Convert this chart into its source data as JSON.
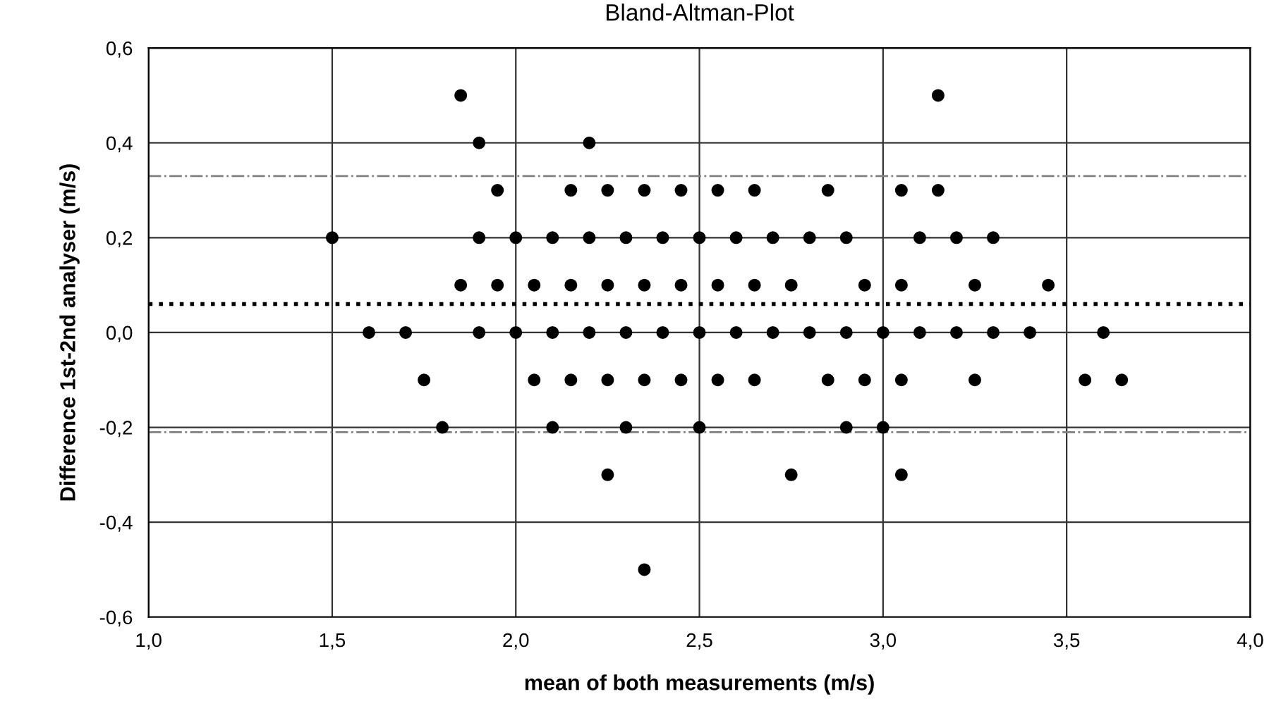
{
  "chart_data": {
    "type": "scatter",
    "title": "Bland-Altman-Plot",
    "xlabel": "mean of both measurements (m/s)",
    "ylabel": "Difference 1st-2nd analyser (m/s)",
    "xlim": [
      1.0,
      4.0
    ],
    "ylim": [
      -0.6,
      0.6
    ],
    "xticks": [
      {
        "value": 1.0,
        "label": "1,0"
      },
      {
        "value": 1.5,
        "label": "1,5"
      },
      {
        "value": 2.0,
        "label": "2,0"
      },
      {
        "value": 2.5,
        "label": "2,5"
      },
      {
        "value": 3.0,
        "label": "3,0"
      },
      {
        "value": 3.5,
        "label": "3,5"
      },
      {
        "value": 4.0,
        "label": "4,0"
      }
    ],
    "yticks": [
      {
        "value": -0.6,
        "label": "-0,6"
      },
      {
        "value": -0.4,
        "label": "-0,4"
      },
      {
        "value": -0.2,
        "label": "-0,2"
      },
      {
        "value": 0.0,
        "label": "0,0"
      },
      {
        "value": 0.2,
        "label": "0,2"
      },
      {
        "value": 0.4,
        "label": "0,4"
      },
      {
        "value": 0.6,
        "label": "0,6"
      }
    ],
    "grid": true,
    "marker": "circle",
    "series": [
      {
        "color": "#000000",
        "x": [
          1.85,
          3.15,
          1.9,
          2.2,
          1.95,
          2.15,
          2.25,
          2.35,
          2.45,
          2.55,
          2.65,
          2.85,
          3.05,
          3.15,
          1.5,
          1.9,
          2.0,
          2.1,
          2.2,
          2.3,
          2.4,
          2.5,
          2.6,
          2.7,
          2.8,
          2.9,
          3.1,
          3.2,
          3.3,
          1.85,
          1.95,
          2.05,
          2.15,
          2.25,
          2.35,
          2.45,
          2.55,
          2.65,
          2.75,
          2.95,
          3.05,
          3.25,
          3.45,
          1.6,
          1.7,
          1.9,
          2.0,
          2.1,
          2.2,
          2.3,
          2.4,
          2.5,
          2.6,
          2.7,
          2.8,
          2.9,
          3.0,
          3.1,
          3.2,
          3.3,
          3.4,
          3.6,
          1.75,
          2.05,
          2.15,
          2.25,
          2.35,
          2.45,
          2.55,
          2.65,
          2.85,
          2.95,
          3.05,
          3.25,
          3.55,
          3.65,
          1.8,
          2.1,
          2.3,
          2.5,
          2.9,
          3.0,
          2.25,
          2.75,
          3.05,
          2.35
        ],
        "values": [
          0.5,
          0.5,
          0.4,
          0.4,
          0.3,
          0.3,
          0.3,
          0.3,
          0.3,
          0.3,
          0.3,
          0.3,
          0.3,
          0.3,
          0.2,
          0.2,
          0.2,
          0.2,
          0.2,
          0.2,
          0.2,
          0.2,
          0.2,
          0.2,
          0.2,
          0.2,
          0.2,
          0.2,
          0.2,
          0.1,
          0.1,
          0.1,
          0.1,
          0.1,
          0.1,
          0.1,
          0.1,
          0.1,
          0.1,
          0.1,
          0.1,
          0.1,
          0.1,
          0.0,
          0.0,
          0.0,
          0.0,
          0.0,
          0.0,
          0.0,
          0.0,
          0.0,
          0.0,
          0.0,
          0.0,
          0.0,
          0.0,
          0.0,
          0.0,
          0.0,
          0.0,
          0.0,
          -0.1,
          -0.1,
          -0.1,
          -0.1,
          -0.1,
          -0.1,
          -0.1,
          -0.1,
          -0.1,
          -0.1,
          -0.1,
          -0.1,
          -0.1,
          -0.1,
          -0.2,
          -0.2,
          -0.2,
          -0.2,
          -0.2,
          -0.2,
          -0.3,
          -0.3,
          -0.3,
          -0.5
        ]
      }
    ],
    "ref_lines": [
      {
        "axis": "y",
        "value": 0.33,
        "color": "#808080",
        "line_style": "dashdot"
      },
      {
        "axis": "y",
        "value": 0.06,
        "color": "#000000",
        "line_style": "dotted"
      },
      {
        "axis": "y",
        "value": -0.21,
        "color": "#808080",
        "line_style": "dashdot"
      }
    ]
  }
}
